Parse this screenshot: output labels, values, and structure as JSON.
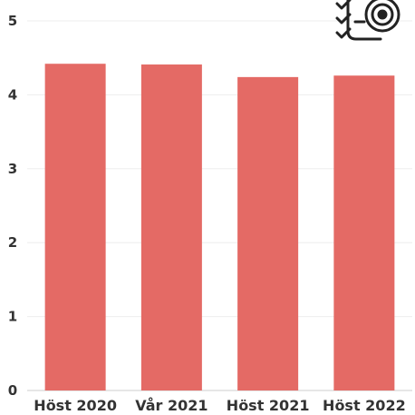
{
  "chart_data": {
    "type": "bar",
    "categories": [
      "Höst 2020",
      "Vår 2021",
      "Höst 2021",
      "Höst 2022"
    ],
    "series": [
      {
        "values": [
          4.42,
          4.41,
          4.24,
          4.26
        ]
      }
    ],
    "ylim": [
      0,
      5
    ],
    "yticks": [
      0,
      1,
      2,
      3,
      4,
      5
    ],
    "grid": true,
    "legend": "none",
    "bar_color": "#e46a65",
    "title": "",
    "xlabel": "",
    "ylabel": ""
  },
  "icon": {
    "name": "checklist-target-icon",
    "color": "#222222"
  }
}
